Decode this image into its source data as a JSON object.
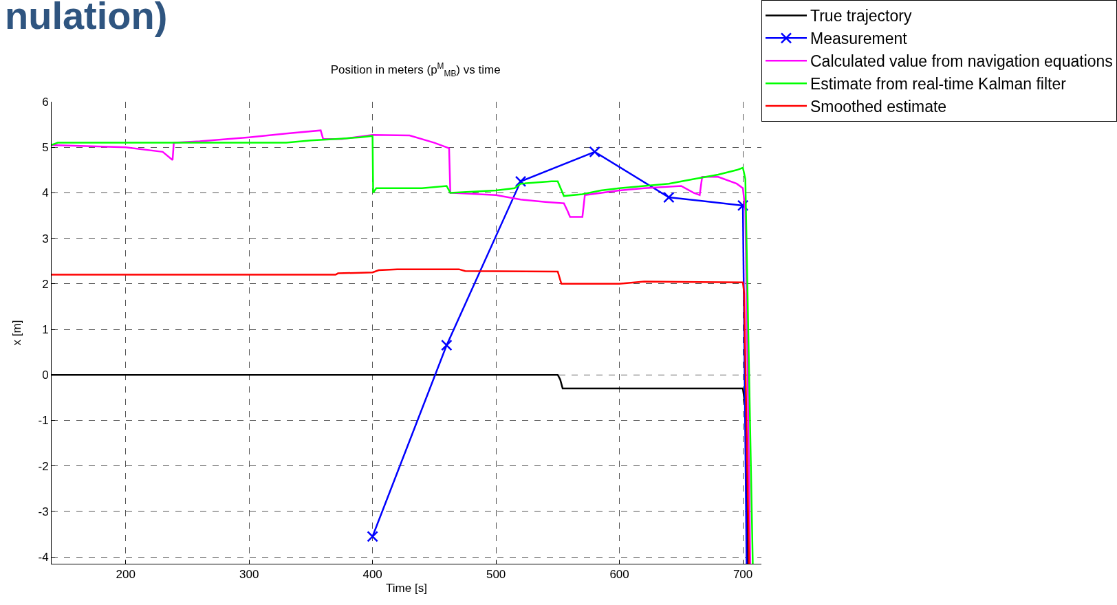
{
  "chart_data": {
    "type": "line",
    "title": "Position in meters (p$^{M}$$_{MB}$) vs time",
    "xlabel": "Time [s]",
    "ylabel": "x [m]",
    "annotations": [
      "nulation)"
    ],
    "xlim": [
      140,
      715
    ],
    "xticks": [
      200,
      300,
      400,
      500,
      600,
      700
    ],
    "ylim": [
      -4.15,
      6
    ],
    "yticks": [
      -4,
      -3,
      -2,
      -1,
      0,
      1,
      2,
      3,
      4,
      5,
      6
    ],
    "grid": true,
    "legend": "top right",
    "series": [
      {
        "name": "True trajectory",
        "color": "#000000",
        "marker": "none",
        "x": [
          140,
          550,
          552,
          554,
          700,
          702,
          704
        ],
        "values": [
          0,
          0,
          -0.1,
          -0.3,
          -0.3,
          -0.7,
          -4.15
        ]
      },
      {
        "name": "Measurement",
        "color": "#0000ff",
        "marker": "cross",
        "x": [
          400,
          460,
          520,
          580,
          640,
          700
        ],
        "values": [
          -3.55,
          0.65,
          4.25,
          4.9,
          3.9,
          3.72
        ]
      },
      {
        "color": "#0000ff",
        "marker": "none",
        "x": [
          700,
          703
        ],
        "values": [
          3.72,
          -4.15
        ]
      },
      {
        "name": "Calculated value from navigation equations",
        "color": "#ff00ff",
        "marker": "none",
        "x": [
          140,
          200,
          230,
          238,
          239,
          260,
          300,
          330,
          358,
          360,
          375,
          400,
          430,
          450,
          462,
          463,
          500,
          520,
          540,
          555,
          558,
          560,
          570,
          572,
          600,
          620,
          650,
          660,
          665,
          667,
          680,
          695,
          700,
          702,
          706
        ],
        "values": [
          5.05,
          5.0,
          4.9,
          4.72,
          5.1,
          5.13,
          5.22,
          5.3,
          5.37,
          5.18,
          5.18,
          5.27,
          5.26,
          5.1,
          4.98,
          4.0,
          3.95,
          3.85,
          3.8,
          3.77,
          3.6,
          3.47,
          3.47,
          3.95,
          4.05,
          4.1,
          4.15,
          4.0,
          3.95,
          4.35,
          4.35,
          4.2,
          4.1,
          3.6,
          -4.15
        ]
      },
      {
        "name": "Estimate from real-time Kalman filter",
        "color": "#00ff00",
        "marker": "none",
        "x": [
          140,
          145,
          330,
          350,
          370,
          390,
          400,
          400.5,
          403,
          420,
          440,
          460,
          463,
          500,
          515,
          520,
          545,
          550,
          555,
          570,
          585,
          600,
          620,
          640,
          660,
          680,
          695,
          700,
          702,
          708
        ],
        "values": [
          5.05,
          5.1,
          5.1,
          5.15,
          5.18,
          5.22,
          5.25,
          4.0,
          4.1,
          4.1,
          4.1,
          4.15,
          4.0,
          4.05,
          4.1,
          4.2,
          4.25,
          4.25,
          3.93,
          3.97,
          4.05,
          4.1,
          4.15,
          4.2,
          4.3,
          4.4,
          4.5,
          4.55,
          4.3,
          -4.15
        ]
      },
      {
        "name": "Smoothed estimate",
        "color": "#ff0000",
        "marker": "none",
        "x": [
          140,
          370,
          372,
          400,
          405,
          420,
          470,
          475,
          550,
          553,
          600,
          620,
          700,
          701,
          705
        ],
        "values": [
          2.2,
          2.2,
          2.23,
          2.25,
          2.3,
          2.32,
          2.32,
          2.28,
          2.27,
          2.0,
          2.0,
          2.05,
          2.03,
          1.8,
          -4.15
        ]
      }
    ]
  }
}
